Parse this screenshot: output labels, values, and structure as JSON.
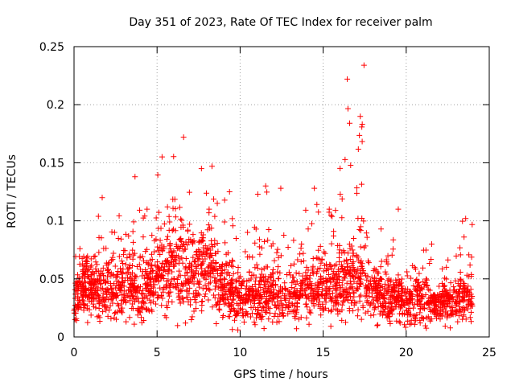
{
  "chart_data": {
    "type": "scatter",
    "title": "Day 351 of 2023, Rate Of TEC Index for receiver palm",
    "xlabel": "GPS time / hours",
    "ylabel": "ROTI / TECUs",
    "xlim": [
      0,
      25
    ],
    "ylim": [
      0,
      0.25
    ],
    "xticks": [
      "0",
      "5",
      "10",
      "15",
      "20",
      "25"
    ],
    "yticks": [
      "0",
      "0.05",
      "0.1",
      "0.15",
      "0.2",
      "0.25"
    ],
    "grid": true,
    "marker": "+",
    "color": "#ff0000",
    "series": [
      {
        "name": "ROTI",
        "hourly_peak_values": [
          0.076,
          0.12,
          0.09,
          0.138,
          0.11,
          0.155,
          0.172,
          0.145,
          0.147,
          0.125,
          0.09,
          0.13,
          0.128,
          0.08,
          0.128,
          0.11,
          0.222,
          0.234,
          0.093,
          0.11,
          0.06,
          0.08,
          0.06,
          0.102
        ],
        "hourly_median_values": [
          0.03,
          0.04,
          0.035,
          0.04,
          0.035,
          0.05,
          0.055,
          0.05,
          0.055,
          0.04,
          0.03,
          0.03,
          0.035,
          0.03,
          0.035,
          0.035,
          0.045,
          0.045,
          0.035,
          0.03,
          0.025,
          0.03,
          0.025,
          0.03
        ],
        "min_value": 0.003,
        "time_range_hours": [
          0,
          24
        ]
      }
    ]
  }
}
